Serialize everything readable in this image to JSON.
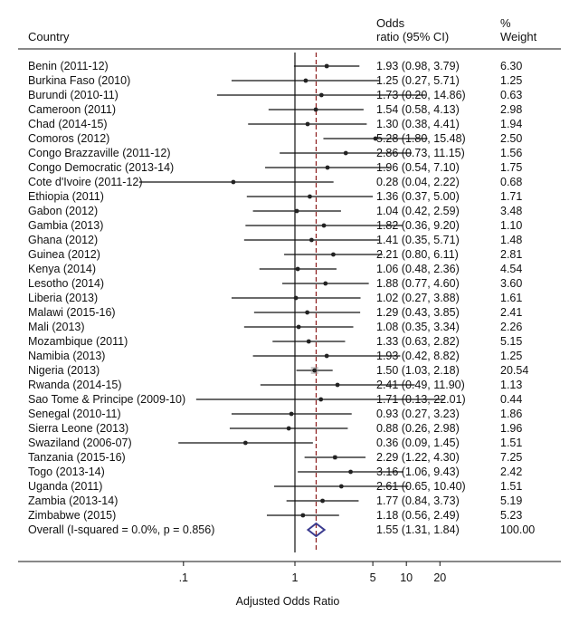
{
  "chart_data": {
    "type": "forest",
    "headers": {
      "country": "Country",
      "or_line1": "Odds",
      "or_line2": "ratio (95% CI)",
      "weight_line1": "%",
      "weight_line2": "Weight"
    },
    "xlabel": "Adjusted Odds Ratio",
    "x_scale": "log",
    "xlim": [
      0.05,
      22.01
    ],
    "x_ticks": [
      {
        "value": 0.1,
        "label": ".1"
      },
      {
        "value": 1,
        "label": "1"
      },
      {
        "value": 5,
        "label": "5"
      },
      {
        "value": 10,
        "label": "10"
      },
      {
        "value": 20,
        "label": "20"
      }
    ],
    "null_line": 1,
    "pooled_line": 1.55,
    "studies": [
      {
        "label": "Benin (2011-12)",
        "or": 1.93,
        "lo": 0.98,
        "hi": 3.79,
        "ci_text": "1.93 (0.98, 3.79)",
        "weight": "6.30"
      },
      {
        "label": "Burkina Faso (2010)",
        "or": 1.25,
        "lo": 0.27,
        "hi": 5.71,
        "ci_text": "1.25 (0.27, 5.71)",
        "weight": "1.25"
      },
      {
        "label": "Burundi (2010-11)",
        "or": 1.73,
        "lo": 0.2,
        "hi": 14.86,
        "ci_text": "1.73 (0.20, 14.86)",
        "weight": "0.63"
      },
      {
        "label": "Cameroon (2011)",
        "or": 1.54,
        "lo": 0.58,
        "hi": 4.13,
        "ci_text": "1.54 (0.58, 4.13)",
        "weight": "2.98"
      },
      {
        "label": "Chad (2014-15)",
        "or": 1.3,
        "lo": 0.38,
        "hi": 4.41,
        "ci_text": "1.30 (0.38, 4.41)",
        "weight": "1.94"
      },
      {
        "label": "Comoros (2012)",
        "or": 5.28,
        "lo": 1.8,
        "hi": 15.48,
        "ci_text": "5.28 (1.80, 15.48)",
        "weight": "2.50"
      },
      {
        "label": "Congo Brazzaville (2011-12)",
        "or": 2.86,
        "lo": 0.73,
        "hi": 11.15,
        "ci_text": "2.86 (0.73, 11.15)",
        "weight": "1.56"
      },
      {
        "label": "Congo Democratic (2013-14)",
        "or": 1.96,
        "lo": 0.54,
        "hi": 7.1,
        "ci_text": "1.96 (0.54, 7.10)",
        "weight": "1.75"
      },
      {
        "label": "Cote d'Ivoire (2011-12)",
        "or": 0.28,
        "lo": 0.04,
        "hi": 2.22,
        "ci_text": "0.28 (0.04, 2.22)",
        "weight": "0.68"
      },
      {
        "label": "Ethiopia (2011)",
        "or": 1.36,
        "lo": 0.37,
        "hi": 5.0,
        "ci_text": "1.36 (0.37, 5.00)",
        "weight": "1.71"
      },
      {
        "label": "Gabon (2012)",
        "or": 1.04,
        "lo": 0.42,
        "hi": 2.59,
        "ci_text": "1.04 (0.42, 2.59)",
        "weight": "3.48"
      },
      {
        "label": "Gambia (2013)",
        "or": 1.82,
        "lo": 0.36,
        "hi": 9.2,
        "ci_text": "1.82 (0.36, 9.20)",
        "weight": "1.10"
      },
      {
        "label": "Ghana (2012)",
        "or": 1.41,
        "lo": 0.35,
        "hi": 5.71,
        "ci_text": "1.41 (0.35, 5.71)",
        "weight": "1.48"
      },
      {
        "label": "Guinea (2012)",
        "or": 2.21,
        "lo": 0.8,
        "hi": 6.11,
        "ci_text": "2.21 (0.80, 6.11)",
        "weight": "2.81"
      },
      {
        "label": "Kenya (2014)",
        "or": 1.06,
        "lo": 0.48,
        "hi": 2.36,
        "ci_text": "1.06 (0.48, 2.36)",
        "weight": "4.54"
      },
      {
        "label": "Lesotho (2014)",
        "or": 1.88,
        "lo": 0.77,
        "hi": 4.6,
        "ci_text": "1.88 (0.77, 4.60)",
        "weight": "3.60"
      },
      {
        "label": "Liberia (2013)",
        "or": 1.02,
        "lo": 0.27,
        "hi": 3.88,
        "ci_text": "1.02 (0.27, 3.88)",
        "weight": "1.61"
      },
      {
        "label": "Malawi (2015-16)",
        "or": 1.29,
        "lo": 0.43,
        "hi": 3.85,
        "ci_text": "1.29 (0.43, 3.85)",
        "weight": "2.41"
      },
      {
        "label": "Mali (2013)",
        "or": 1.08,
        "lo": 0.35,
        "hi": 3.34,
        "ci_text": "1.08 (0.35, 3.34)",
        "weight": "2.26"
      },
      {
        "label": "Mozambique (2011)",
        "or": 1.33,
        "lo": 0.63,
        "hi": 2.82,
        "ci_text": "1.33 (0.63, 2.82)",
        "weight": "5.15"
      },
      {
        "label": "Namibia (2013)",
        "or": 1.93,
        "lo": 0.42,
        "hi": 8.82,
        "ci_text": "1.93 (0.42, 8.82)",
        "weight": "1.25"
      },
      {
        "label": "Nigeria (2013)",
        "or": 1.5,
        "lo": 1.03,
        "hi": 2.18,
        "ci_text": "1.50 (1.03, 2.18)",
        "weight": "20.54"
      },
      {
        "label": "Rwanda (2014-15)",
        "or": 2.41,
        "lo": 0.49,
        "hi": 11.9,
        "ci_text": "2.41 (0.49, 11.90)",
        "weight": "1.13"
      },
      {
        "label": "Sao Tome & Principe (2009-10)",
        "or": 1.71,
        "lo": 0.13,
        "hi": 22.01,
        "ci_text": "1.71 (0.13, 22.01)",
        "weight": "0.44"
      },
      {
        "label": "Senegal (2010-11)",
        "or": 0.93,
        "lo": 0.27,
        "hi": 3.23,
        "ci_text": "0.93 (0.27, 3.23)",
        "weight": "1.86"
      },
      {
        "label": "Sierra Leone (2013)",
        "or": 0.88,
        "lo": 0.26,
        "hi": 2.98,
        "ci_text": "0.88 (0.26, 2.98)",
        "weight": "1.96"
      },
      {
        "label": "Swaziland (2006-07)",
        "or": 0.36,
        "lo": 0.09,
        "hi": 1.45,
        "ci_text": "0.36 (0.09, 1.45)",
        "weight": "1.51"
      },
      {
        "label": "Tanzania (2015-16)",
        "or": 2.29,
        "lo": 1.22,
        "hi": 4.3,
        "ci_text": "2.29 (1.22, 4.30)",
        "weight": "7.25"
      },
      {
        "label": "Togo (2013-14)",
        "or": 3.16,
        "lo": 1.06,
        "hi": 9.43,
        "ci_text": "3.16 (1.06, 9.43)",
        "weight": "2.42"
      },
      {
        "label": "Uganda (2011)",
        "or": 2.61,
        "lo": 0.65,
        "hi": 10.4,
        "ci_text": "2.61 (0.65, 10.40)",
        "weight": "1.51"
      },
      {
        "label": "Zambia (2013-14)",
        "or": 1.77,
        "lo": 0.84,
        "hi": 3.73,
        "ci_text": "1.77 (0.84, 3.73)",
        "weight": "5.19"
      },
      {
        "label": "Zimbabwe (2015)",
        "or": 1.18,
        "lo": 0.56,
        "hi": 2.49,
        "ci_text": "1.18 (0.56, 2.49)",
        "weight": "5.23"
      }
    ],
    "overall": {
      "label": "Overall  (I-squared = 0.0%, p = 0.856)",
      "or": 1.55,
      "lo": 1.31,
      "hi": 1.84,
      "ci_text": "1.55 (1.31, 1.84)",
      "weight": "100.00"
    },
    "colors": {
      "text": "#111111",
      "ci_line": "#111111",
      "point": "#222222",
      "pooled_line": "#8b1a1a",
      "diamond": "#3b3b8f"
    }
  }
}
